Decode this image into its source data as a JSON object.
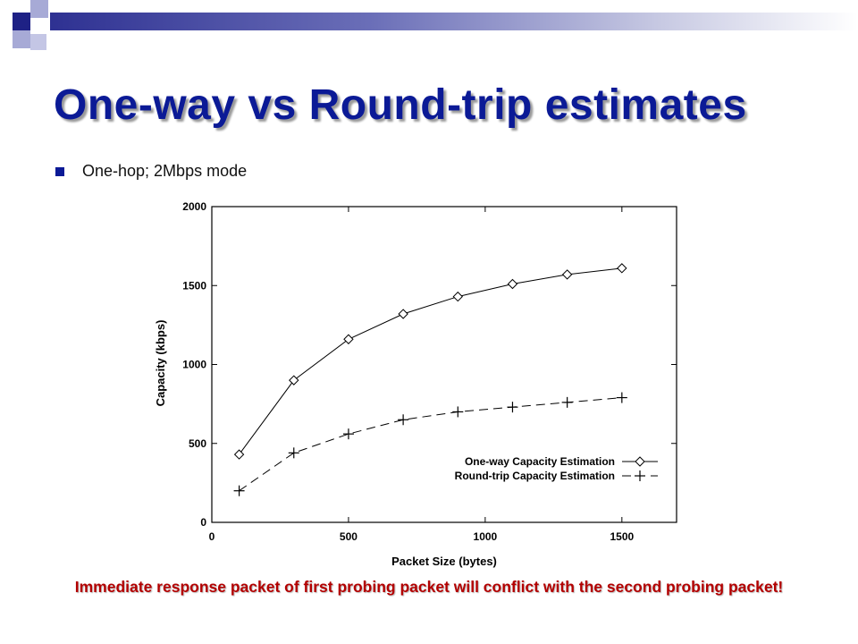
{
  "slide": {
    "title": "One-way vs Round-trip estimates",
    "bullet": "One-hop; 2Mbps mode",
    "footnote": "Immediate response packet of first probing packet will conflict with the second probing packet!"
  },
  "colors": {
    "title": "#0b1a96",
    "footnote": "#b30000",
    "accent_dark": "#2e3192",
    "accent_light": "#9fa3d3"
  },
  "chart_data": {
    "type": "line",
    "xlabel": "Packet Size (bytes)",
    "ylabel": "Capacity (kbps)",
    "xlim": [
      0,
      1700
    ],
    "ylim": [
      0,
      2000
    ],
    "xticks": [
      "0",
      "500",
      "1000",
      "1500"
    ],
    "yticks": [
      "0",
      "500",
      "1000",
      "1500",
      "2000"
    ],
    "grid": false,
    "legend_position": "bottom-right",
    "x": [
      100,
      300,
      500,
      700,
      900,
      1100,
      1300,
      1500
    ],
    "series": [
      {
        "name": "One-way Capacity Estimation",
        "marker": "diamond",
        "line": "solid",
        "values": [
          430,
          900,
          1160,
          1320,
          1430,
          1510,
          1570,
          1610
        ]
      },
      {
        "name": "Round-trip Capacity Estimation",
        "marker": "plus",
        "line": "dashed",
        "values": [
          200,
          440,
          560,
          650,
          700,
          730,
          760,
          790
        ]
      }
    ]
  }
}
